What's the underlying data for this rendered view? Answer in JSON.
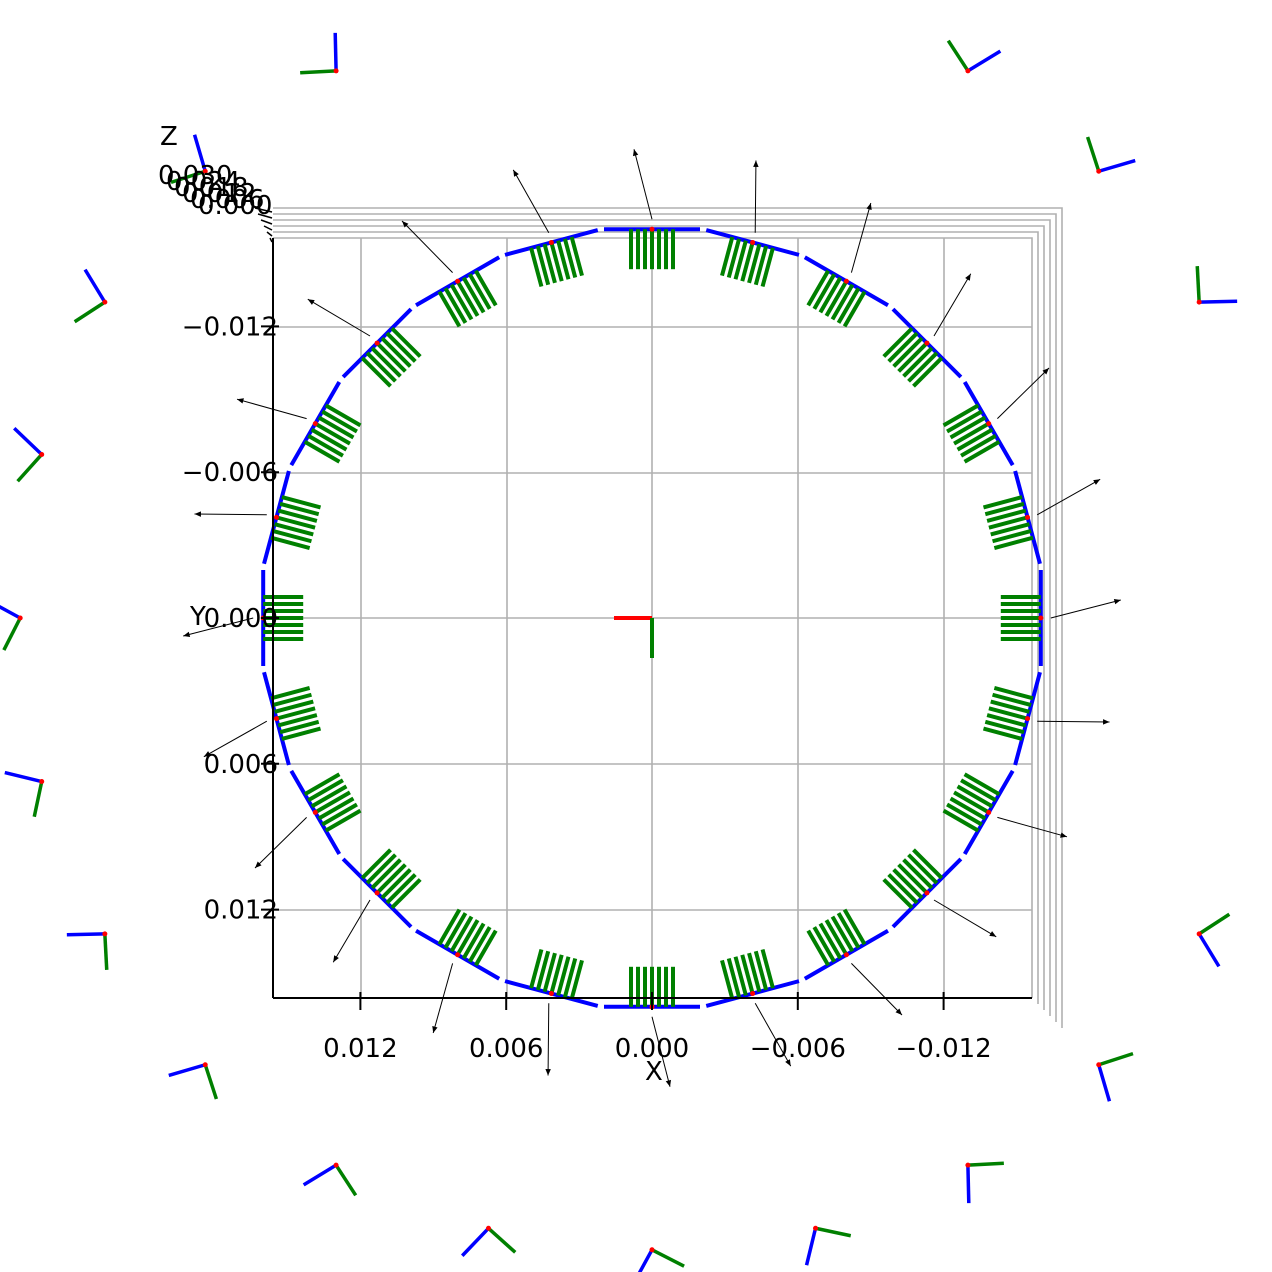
{
  "chart_data": {
    "type": "3d-quiver",
    "view": "top-down",
    "title": "",
    "axes": {
      "x": {
        "label": "X",
        "ticks": [
          12,
          6,
          0,
          -6,
          -12
        ],
        "tick_labels": [
          "0.012",
          "0.006",
          "0.000",
          "−0.006",
          "−0.012"
        ],
        "range": [
          0.0155,
          -0.0155
        ],
        "scale": 0.001
      },
      "y": {
        "label": "Y",
        "ticks": [
          -12,
          -6,
          0,
          6,
          12
        ],
        "tick_labels": [
          "−0.012",
          "−0.006",
          "0.000",
          "0.006",
          "0.012"
        ],
        "range": [
          -0.0155,
          0.0155
        ],
        "scale": 0.001
      },
      "z": {
        "label": "Z",
        "tick_labels": [
          "0.030",
          "0.024",
          "0.018",
          "0.012",
          "0.006",
          "0.000"
        ]
      }
    },
    "grid": true,
    "origin_frame": {
      "x_axis_color": "#ff0000",
      "y_axis_color": "#008000"
    },
    "ring": {
      "description": "coordinate frames arranged on a ring around the Z axis",
      "frame_count": 24,
      "inner_radius_mm": 16,
      "outer_radius_mm": 26,
      "colors": {
        "x_axis": "#ff0000",
        "y_axis": "#008000",
        "z_axis": "#0000ff",
        "arrow": "#000000"
      }
    }
  }
}
